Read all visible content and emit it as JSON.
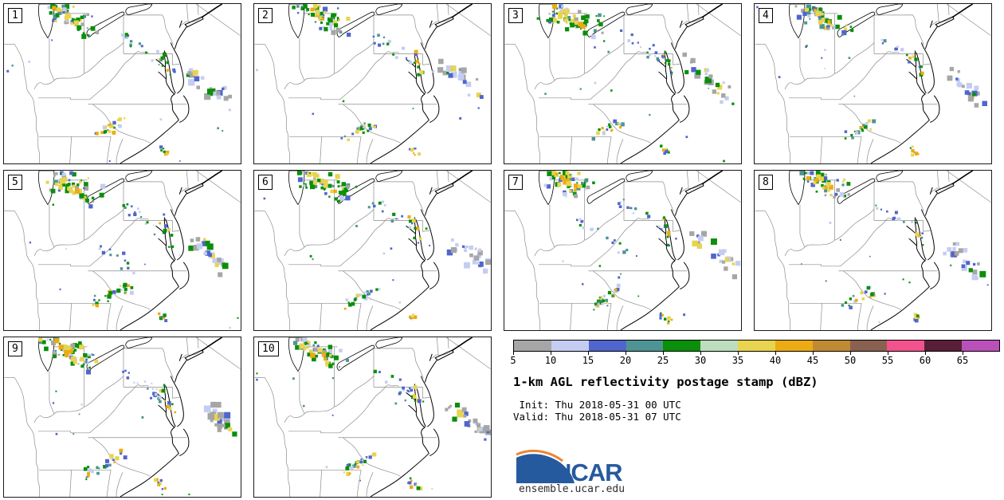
{
  "title": "1-km AGL reflectivity postage stamp (dBZ)",
  "init_line": " Init: Thu 2018-05-31 00 UTC",
  "valid_line": "Valid: Thu 2018-05-31 07 UTC",
  "logo": {
    "name": "NCAR",
    "url": "ensemble.ucar.edu"
  },
  "colorbar": {
    "ticks": [
      "5",
      "10",
      "15",
      "20",
      "25",
      "30",
      "35",
      "40",
      "45",
      "50",
      "55",
      "60",
      "65"
    ],
    "colors": [
      "#a6a6a6",
      "#c4cdf1",
      "#5065cd",
      "#4f9494",
      "#0a8f0a",
      "#bedcbe",
      "#e8d44e",
      "#ecab13",
      "#c08a33",
      "#8a6150",
      "#f2538c",
      "#5a1f38",
      "#ba51ba"
    ],
    "units": "dBZ"
  },
  "palette": {
    "gray": "#a6a6a6",
    "lav": "#c4cdf1",
    "blue": "#5065cd",
    "teal": "#4f9494",
    "green": "#0a8f0a",
    "ltgreen": "#bedcbe",
    "yellow": "#e8d44e",
    "orange": "#ecab13",
    "dkgold": "#c08a33",
    "brown": "#8a6150",
    "pink": "#f2538c",
    "maroon": "#5a1f38",
    "magenta": "#ba51ba"
  },
  "cluster_palettes": {
    "storm": [
      "green",
      "green",
      "blue",
      "lav",
      "yellow",
      "teal",
      "gray",
      "green"
    ],
    "core": [
      "yellow",
      "orange",
      "green",
      "yellow"
    ],
    "line": [
      "blue",
      "lav",
      "lav",
      "blue",
      "green",
      "teal"
    ],
    "strong": [
      "green",
      "yellow",
      "blue",
      "orange",
      "green"
    ],
    "offshore": [
      "gray",
      "gray",
      "lav",
      "lav",
      "blue",
      "green",
      "yellow",
      "gray"
    ],
    "offshoreLav": [
      "lav",
      "lav",
      "blue",
      "gray",
      "lav"
    ],
    "south": [
      "green",
      "yellow",
      "blue",
      "lav",
      "orange",
      "green",
      "teal"
    ],
    "coastal": [
      "green",
      "yellow",
      "orange",
      "blue"
    ],
    "specks": [
      "blue",
      "lav",
      "teal",
      "green"
    ]
  },
  "panels": [
    {
      "label": "1",
      "seed": 11,
      "clusters": [
        [
          "storm",
          58,
          6,
          115,
          30,
          13,
          44,
          1,
          3.2
        ],
        [
          "core",
          66,
          8,
          96,
          24,
          6,
          13,
          1.5,
          3.4
        ],
        [
          "line",
          150,
          40,
          196,
          70,
          7,
          15,
          1,
          2.2
        ],
        [
          "strong",
          199,
          60,
          212,
          92,
          5,
          10,
          1,
          2.5
        ],
        [
          "offshore",
          236,
          86,
          284,
          126,
          10,
          24,
          1.5,
          4.2
        ],
        [
          "south",
          112,
          168,
          150,
          150,
          6,
          20,
          1,
          2.6
        ],
        [
          "coastal",
          196,
          182,
          207,
          190,
          4,
          8,
          1,
          2.4
        ],
        [
          "specks",
          35,
          35,
          265,
          175,
          70,
          12,
          0.8,
          1.5
        ]
      ]
    },
    {
      "label": "2",
      "seed": 22,
      "clusters": [
        [
          "storm",
          60,
          6,
          116,
          28,
          13,
          42,
          1,
          3.2
        ],
        [
          "core",
          70,
          8,
          98,
          22,
          6,
          12,
          1.5,
          3.4
        ],
        [
          "line",
          152,
          42,
          198,
          72,
          7,
          13,
          1,
          2.2
        ],
        [
          "strong",
          200,
          62,
          212,
          94,
          5,
          9,
          1,
          2.5
        ],
        [
          "offshore",
          240,
          78,
          286,
          114,
          10,
          22,
          1.5,
          4.2
        ],
        [
          "south",
          110,
          170,
          152,
          150,
          6,
          22,
          1,
          2.6
        ],
        [
          "coastal",
          197,
          182,
          208,
          190,
          4,
          7,
          1,
          2.4
        ],
        [
          "specks",
          40,
          40,
          260,
          170,
          70,
          11,
          0.8,
          1.5
        ]
      ]
    },
    {
      "label": "3",
      "seed": 33,
      "clusters": [
        [
          "storm",
          56,
          6,
          118,
          32,
          15,
          50,
          1,
          3.2
        ],
        [
          "core",
          64,
          8,
          100,
          26,
          7,
          14,
          1.5,
          3.4
        ],
        [
          "line",
          150,
          38,
          198,
          70,
          8,
          17,
          1,
          2.2
        ],
        [
          "strong",
          198,
          58,
          212,
          90,
          5,
          11,
          1,
          2.5
        ],
        [
          "offshore",
          234,
          72,
          288,
          118,
          11,
          26,
          1.5,
          4.4
        ],
        [
          "south",
          112,
          168,
          152,
          150,
          6,
          19,
          1,
          2.6
        ],
        [
          "coastal",
          196,
          182,
          206,
          190,
          4,
          8,
          1,
          2.4
        ],
        [
          "specks",
          35,
          35,
          265,
          175,
          70,
          13,
          0.8,
          1.5
        ]
      ]
    },
    {
      "label": "4",
      "seed": 44,
      "clusters": [
        [
          "storm",
          58,
          6,
          116,
          30,
          13,
          45,
          1,
          3.2
        ],
        [
          "core",
          68,
          8,
          96,
          24,
          6,
          12,
          1.5,
          3.4
        ],
        [
          "line",
          152,
          40,
          198,
          72,
          7,
          12,
          1,
          2.2
        ],
        [
          "strong",
          200,
          62,
          212,
          92,
          5,
          8,
          1,
          2.5
        ],
        [
          "offshore",
          248,
          88,
          290,
          124,
          9,
          20,
          1.5,
          4.0
        ],
        [
          "south",
          112,
          168,
          150,
          152,
          6,
          18,
          1,
          2.6
        ],
        [
          "coastal",
          197,
          183,
          207,
          190,
          4,
          7,
          1,
          2.4
        ],
        [
          "specks",
          40,
          35,
          260,
          175,
          70,
          11,
          0.8,
          1.5
        ]
      ]
    },
    {
      "label": "5",
      "seed": 55,
      "clusters": [
        [
          "storm",
          58,
          6,
          114,
          32,
          14,
          46,
          1,
          3.2
        ],
        [
          "core",
          66,
          10,
          94,
          26,
          6,
          13,
          1.5,
          3.4
        ],
        [
          "line",
          120,
          95,
          168,
          128,
          8,
          12,
          1,
          2.2
        ],
        [
          "line",
          150,
          40,
          196,
          72,
          7,
          13,
          1,
          2.2
        ],
        [
          "strong",
          198,
          60,
          212,
          92,
          5,
          9,
          1,
          2.5
        ],
        [
          "offshore",
          238,
          84,
          284,
          124,
          10,
          22,
          1.5,
          4.2
        ],
        [
          "south",
          106,
          172,
          158,
          148,
          7,
          26,
          1,
          2.8
        ],
        [
          "coastal",
          195,
          182,
          206,
          191,
          4,
          8,
          1,
          2.4
        ],
        [
          "specks",
          35,
          35,
          265,
          175,
          70,
          12,
          0.8,
          1.5
        ]
      ]
    },
    {
      "label": "6",
      "seed": 66,
      "clusters": [
        [
          "storm",
          62,
          6,
          120,
          32,
          13,
          44,
          1,
          3.2
        ],
        [
          "core",
          72,
          8,
          100,
          24,
          6,
          12,
          1.5,
          3.4
        ],
        [
          "line",
          150,
          40,
          196,
          70,
          7,
          14,
          1,
          2.2
        ],
        [
          "strong",
          198,
          60,
          210,
          90,
          5,
          9,
          1,
          2.5
        ],
        [
          "offshoreLav",
          252,
          92,
          294,
          126,
          11,
          28,
          1.5,
          4.2
        ],
        [
          "south",
          116,
          170,
          156,
          152,
          6,
          20,
          1,
          2.6
        ],
        [
          "coastal",
          196,
          182,
          207,
          190,
          4,
          8,
          1,
          2.4
        ],
        [
          "specks",
          35,
          40,
          260,
          175,
          70,
          12,
          0.8,
          1.5
        ]
      ]
    },
    {
      "label": "7",
      "seed": 77,
      "clusters": [
        [
          "storm",
          58,
          6,
          116,
          30,
          14,
          46,
          1,
          3.2
        ],
        [
          "core",
          66,
          8,
          96,
          24,
          6,
          13,
          1.5,
          3.4
        ],
        [
          "line",
          95,
          60,
          162,
          108,
          8,
          16,
          1,
          2.2
        ],
        [
          "line",
          150,
          40,
          196,
          70,
          7,
          12,
          1,
          2.2
        ],
        [
          "strong",
          198,
          60,
          212,
          90,
          5,
          9,
          1,
          2.5
        ],
        [
          "offshore",
          240,
          80,
          290,
          128,
          10,
          22,
          1.5,
          4.2
        ],
        [
          "south",
          108,
          172,
          150,
          150,
          6,
          24,
          1,
          2.8
        ],
        [
          "coastal",
          196,
          182,
          208,
          192,
          4,
          9,
          1,
          2.4
        ],
        [
          "specks",
          35,
          35,
          265,
          175,
          70,
          13,
          0.8,
          1.5
        ]
      ]
    },
    {
      "label": "8",
      "seed": 88,
      "clusters": [
        [
          "storm",
          60,
          6,
          116,
          28,
          13,
          42,
          1,
          3.0
        ],
        [
          "core",
          70,
          8,
          96,
          22,
          6,
          12,
          1.5,
          3.2
        ],
        [
          "line",
          152,
          42,
          196,
          72,
          7,
          10,
          1,
          2.2
        ],
        [
          "strong",
          200,
          62,
          212,
          92,
          5,
          8,
          1,
          2.5
        ],
        [
          "offshore",
          246,
          98,
          288,
          132,
          9,
          22,
          1.5,
          4.2
        ],
        [
          "south",
          112,
          170,
          152,
          152,
          6,
          18,
          1,
          2.6
        ],
        [
          "coastal",
          197,
          182,
          207,
          190,
          4,
          7,
          1,
          2.4
        ],
        [
          "specks",
          40,
          40,
          260,
          170,
          70,
          11,
          0.8,
          1.5
        ]
      ]
    },
    {
      "label": "9",
      "seed": 99,
      "clusters": [
        [
          "storm",
          56,
          6,
          114,
          32,
          14,
          46,
          1,
          3.2
        ],
        [
          "core",
          64,
          8,
          94,
          26,
          6,
          13,
          1.5,
          3.4
        ],
        [
          "line",
          148,
          38,
          204,
          84,
          8,
          18,
          1,
          2.4
        ],
        [
          "strong",
          198,
          58,
          212,
          92,
          5,
          10,
          1,
          2.5
        ],
        [
          "offshore",
          258,
          88,
          292,
          128,
          10,
          24,
          1.5,
          4.4
        ],
        [
          "south",
          100,
          174,
          152,
          148,
          7,
          26,
          1,
          2.8
        ],
        [
          "coastal",
          195,
          182,
          206,
          190,
          4,
          8,
          1,
          2.4
        ],
        [
          "specks",
          35,
          35,
          265,
          175,
          70,
          12,
          0.8,
          1.5
        ]
      ]
    },
    {
      "label": "10",
      "seed": 110,
      "clusters": [
        [
          "storm",
          55,
          8,
          112,
          32,
          13,
          46,
          1,
          3.2
        ],
        [
          "core",
          63,
          10,
          92,
          26,
          6,
          13,
          1.5,
          3.4
        ],
        [
          "line",
          150,
          40,
          196,
          72,
          7,
          13,
          1,
          2.2
        ],
        [
          "strong",
          198,
          60,
          212,
          92,
          5,
          9,
          1,
          2.5
        ],
        [
          "offshore",
          250,
          85,
          292,
          124,
          10,
          26,
          1.5,
          4.2
        ],
        [
          "south",
          110,
          170,
          152,
          150,
          6,
          22,
          1,
          2.6
        ],
        [
          "coastal",
          196,
          182,
          208,
          191,
          4,
          9,
          1,
          2.4
        ],
        [
          "specks",
          35,
          35,
          265,
          175,
          70,
          12,
          0.8,
          1.5
        ]
      ]
    }
  ]
}
